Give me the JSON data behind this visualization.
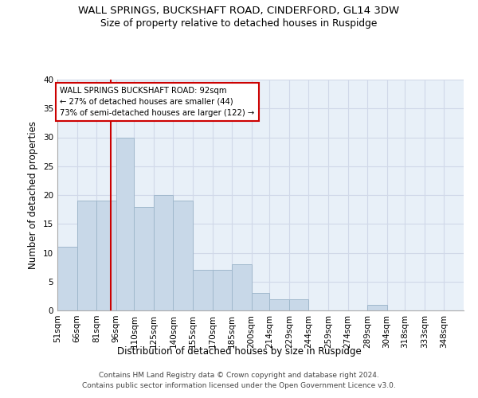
{
  "title": "WALL SPRINGS, BUCKSHAFT ROAD, CINDERFORD, GL14 3DW",
  "subtitle": "Size of property relative to detached houses in Ruspidge",
  "xlabel": "Distribution of detached houses by size in Ruspidge",
  "ylabel": "Number of detached properties",
  "footer_line1": "Contains HM Land Registry data © Crown copyright and database right 2024.",
  "footer_line2": "Contains public sector information licensed under the Open Government Licence v3.0.",
  "bin_labels": [
    "51sqm",
    "66sqm",
    "81sqm",
    "96sqm",
    "110sqm",
    "125sqm",
    "140sqm",
    "155sqm",
    "170sqm",
    "185sqm",
    "200sqm",
    "214sqm",
    "229sqm",
    "244sqm",
    "259sqm",
    "274sqm",
    "289sqm",
    "304sqm",
    "318sqm",
    "333sqm",
    "348sqm"
  ],
  "bar_values": [
    11,
    19,
    19,
    30,
    18,
    20,
    19,
    7,
    7,
    8,
    3,
    2,
    2,
    0,
    0,
    0,
    1,
    0,
    0,
    0,
    0
  ],
  "bar_color": "#c8d8e8",
  "bar_edge_color": "#a0b8cc",
  "grid_color": "#d0d8e8",
  "background_color": "#e8f0f8",
  "vline_x": 92,
  "vline_color": "#cc0000",
  "annotation_line1": "WALL SPRINGS BUCKSHAFT ROAD: 92sqm",
  "annotation_line2": "← 27% of detached houses are smaller (44)",
  "annotation_line3": "73% of semi-detached houses are larger (122) →",
  "annotation_box_color": "#ffffff",
  "annotation_box_edge": "#cc0000",
  "ylim": [
    0,
    40
  ],
  "yticks": [
    0,
    5,
    10,
    15,
    20,
    25,
    30,
    35,
    40
  ],
  "bin_edges": [
    51,
    66,
    81,
    96,
    110,
    125,
    140,
    155,
    170,
    185,
    200,
    214,
    229,
    244,
    259,
    274,
    289,
    304,
    318,
    333,
    348,
    363
  ]
}
